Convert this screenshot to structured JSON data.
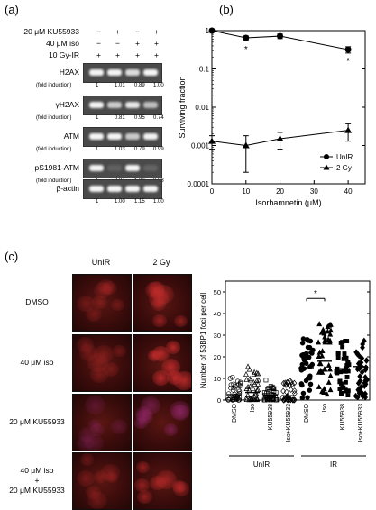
{
  "panel_a": {
    "label": "(a)",
    "conditions": [
      {
        "name": "20 μM KU55933",
        "values": [
          "−",
          "+",
          "−",
          "+"
        ]
      },
      {
        "name": "40 μM iso",
        "values": [
          "−",
          "−",
          "+",
          "+"
        ]
      },
      {
        "name": "10 Gy-IR",
        "values": [
          "+",
          "+",
          "+",
          "+"
        ]
      }
    ],
    "blots": [
      {
        "name": "H2AX",
        "fold_label": "(fold induction)",
        "folds": [
          "1",
          "1.01",
          "0.89",
          "1.00"
        ]
      },
      {
        "name": "γH2AX",
        "fold_label": "(fold induction)",
        "folds": [
          "1",
          "0.81",
          "0.95",
          "0.74"
        ]
      },
      {
        "name": "ATM",
        "fold_label": "(fold induction)",
        "folds": [
          "1",
          "1.03",
          "0.79",
          "0.99"
        ]
      },
      {
        "name": "pS1981-ATM",
        "fold_label": "(fold induction)",
        "folds": [
          "1",
          "0.04",
          "1.03",
          "0.08"
        ]
      },
      {
        "name": "β-actin",
        "fold_label": "",
        "folds": [
          "1",
          "1.00",
          "1.15",
          "1.00"
        ]
      }
    ]
  },
  "panel_b": {
    "label": "(b)",
    "asterisks": [
      "*",
      "*"
    ]
  },
  "panel_c": {
    "label": "(c)",
    "columns": [
      "UnIR",
      "2 Gy"
    ],
    "rows": [
      {
        "label_lines": [
          "DMSO"
        ]
      },
      {
        "label_lines": [
          "40 μM iso"
        ]
      },
      {
        "label_lines": [
          "20 μM KU55933"
        ]
      },
      {
        "label_lines": [
          "40 μM iso",
          "+",
          "20 μM KU55933"
        ]
      }
    ],
    "asterisk": "*"
  },
  "chart_data": [
    {
      "type": "line",
      "xlabel": "Isorhamnetin (μM)",
      "ylabel": "Surviving fraction",
      "yscale": "log",
      "xlim": [
        0,
        45
      ],
      "ylim": [
        0.0001,
        1
      ],
      "x_ticks": [
        "0",
        "10",
        "20",
        "30",
        "40"
      ],
      "y_ticks": [
        "1",
        "0.1",
        "0.01",
        "0.001",
        "0.0001"
      ],
      "legend_position": "bottom-right",
      "x": [
        0,
        10,
        20,
        40
      ],
      "series": [
        {
          "name": "UnIR",
          "marker": "circle",
          "values": [
            1.0,
            0.65,
            0.72,
            0.32
          ],
          "errors": [
            0.1,
            0.08,
            0.1,
            0.06
          ]
        },
        {
          "name": "2 Gy",
          "marker": "triangle",
          "values": [
            0.0013,
            0.001,
            0.0015,
            0.0025
          ],
          "errors": [
            0.0005,
            0.0008,
            0.0007,
            0.0012
          ]
        }
      ]
    },
    {
      "type": "scatter",
      "ylabel": "Number of 53BP1 foci per cell",
      "ylim": [
        0,
        55
      ],
      "y_ticks": [
        "0",
        "10",
        "20",
        "30",
        "40",
        "50"
      ],
      "categories": [
        "DMSO",
        "Iso",
        "KU55938",
        "Iso+KU55933",
        "DMSO",
        "Iso",
        "KU55938",
        "Iso+KU55933"
      ],
      "groups": [
        {
          "name": "UnIR",
          "span": [
            0,
            3
          ]
        },
        {
          "name": "IR",
          "span": [
            4,
            7
          ]
        }
      ],
      "means": [
        2.5,
        3.5,
        2.2,
        2.0,
        15.0,
        18.0,
        14.5,
        15.5
      ],
      "markers": [
        "open-circle",
        "open-triangle",
        "open-square",
        "open-diamond",
        "circle",
        "triangle",
        "square",
        "diamond"
      ]
    }
  ]
}
